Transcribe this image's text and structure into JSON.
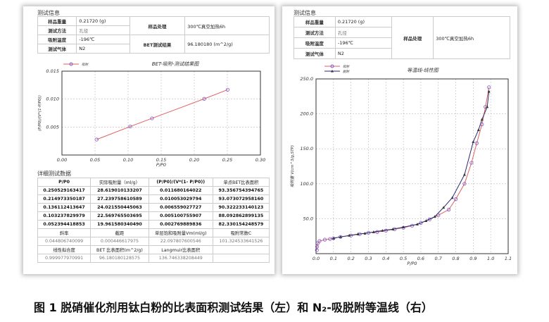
{
  "left": {
    "section_title": "测试信息",
    "info": {
      "mass_label": "样品重量",
      "mass": "0.21720 (g)",
      "method_label": "测试方法",
      "method": "孔径",
      "temp_label": "吸附温度",
      "temp": "-196℃",
      "gas_label": "测试气体",
      "gas": "N2",
      "treat_label": "样品处理",
      "treat": "300℃真空加热6h",
      "bet_label": "BET测试结果",
      "bet": "96.180180 (m^2/g)"
    },
    "detail_title": "详细测试数据",
    "detail_headers": [
      "P/P0",
      "实际吸附量（ml/g）",
      "(P/P0)/(V*(1- P/P0))",
      "单点BET比表面积"
    ],
    "detail_rows": [
      [
        "0.250529163417",
        "28.619010133207",
        "0.011680164022",
        "93.356754394765"
      ],
      [
        "0.214973350187",
        "27.239758610589",
        "0.010053029794",
        "93.073072958160"
      ],
      [
        "0.136112413647",
        "24.021550445063",
        "0.006559027727",
        "90.322233140123"
      ],
      [
        "0.103237829979",
        "22.569765503695",
        "0.005100755907",
        "88.092862899135"
      ],
      [
        "0.052394418853",
        "19.961580340490",
        "0.002769889836",
        "82.330154248579"
      ]
    ],
    "summary": [
      [
        "斜率",
        "截距",
        "单层饱和吸附量Vm(ml/g)",
        "吸附常数C"
      ],
      [
        "0.044806740099",
        "0.000446617975",
        "22.097807600546",
        "101.324533641526"
      ],
      [
        "线性拟合度",
        "BET 比表面积(m^2/g)",
        "Langmuir比表面积",
        ""
      ],
      [
        "0.999977970991",
        "96.180180128575",
        "136.746338208449",
        ""
      ]
    ]
  },
  "right": {
    "section_title": "测试信息",
    "info": {
      "mass_label": "样品重量",
      "mass": "0.21720 (g)",
      "method_label": "测试方法",
      "method": "孔径",
      "temp_label": "吸附温度",
      "temp": "-196℃",
      "gas_label": "测试气体",
      "gas": "N2",
      "treat_label": "样品处理",
      "treat": "300℃真空加热6h"
    }
  },
  "chart_data": [
    {
      "type": "line",
      "title": "BET-吸附-测试结果图",
      "xlabel": "P/P0",
      "ylabel": "(P/P0)/(V*(1-P/P0))",
      "xlim": [
        0,
        0.3
      ],
      "ylim": [
        0,
        0.015
      ],
      "xticks": [
        "0.00",
        "0.05",
        "0.10",
        "0.15",
        "0.20",
        "0.25",
        "0.30"
      ],
      "yticks": [
        "0.005",
        "0.010",
        "0.015"
      ],
      "grid": true,
      "legend": "top-left",
      "series": [
        {
          "name": "吸附",
          "color": "#e06060",
          "marker": "circle",
          "x": [
            0.0524,
            0.1032,
            0.1361,
            0.215,
            0.2505
          ],
          "y": [
            0.00277,
            0.0051,
            0.00656,
            0.01005,
            0.01168
          ]
        }
      ]
    },
    {
      "type": "line",
      "title": "等温线-线性图",
      "xlabel": "P/P0",
      "ylabel": "吸附量 V(cm^3/g,STP)",
      "xlim": [
        0,
        1.1
      ],
      "ylim": [
        0,
        250
      ],
      "xticks": [
        "0.0",
        "0.1",
        "0.2",
        "0.3",
        "0.4",
        "0.5",
        "0.6",
        "0.7",
        "0.8",
        "0.9",
        "1.0",
        "1.1"
      ],
      "yticks": [
        "50.0",
        "100.0",
        "150.0",
        "200.0",
        "250.0"
      ],
      "grid": true,
      "legend": "top-left",
      "series": [
        {
          "name": "吸附",
          "color": "#e06060",
          "marker": "circle",
          "x": [
            0.005,
            0.006,
            0.01,
            0.02,
            0.05,
            0.08,
            0.1,
            0.14,
            0.2,
            0.25,
            0.3,
            0.35,
            0.4,
            0.45,
            0.5,
            0.55,
            0.6,
            0.65,
            0.7,
            0.76,
            0.8,
            0.85,
            0.89,
            0.92,
            0.95,
            0.97,
            0.99
          ],
          "y": [
            5,
            10,
            15,
            18,
            20,
            21,
            22,
            24,
            26,
            28,
            30,
            31,
            33,
            35,
            37,
            40,
            44,
            49,
            55,
            63,
            78,
            100,
            130,
            158,
            185,
            210,
            238
          ]
        },
        {
          "name": "脱附",
          "color": "#2a2a70",
          "marker": "triangle",
          "x": [
            0.99,
            0.98,
            0.95,
            0.93,
            0.9,
            0.85,
            0.78,
            0.73,
            0.68,
            0.63,
            0.58,
            0.5,
            0.44,
            0.38,
            0.33,
            0.28,
            0.24,
            0.19,
            0.14,
            0.1
          ],
          "y": [
            232,
            210,
            192,
            177,
            160,
            113,
            80,
            66,
            53,
            47,
            42,
            38,
            35,
            33,
            31,
            29,
            28,
            26,
            24,
            22
          ]
        }
      ]
    }
  ],
  "caption": "图 1 脱硝催化剂用钛白粉的比表面积测试结果（左）和 N₂-吸脱附等温线（右）"
}
